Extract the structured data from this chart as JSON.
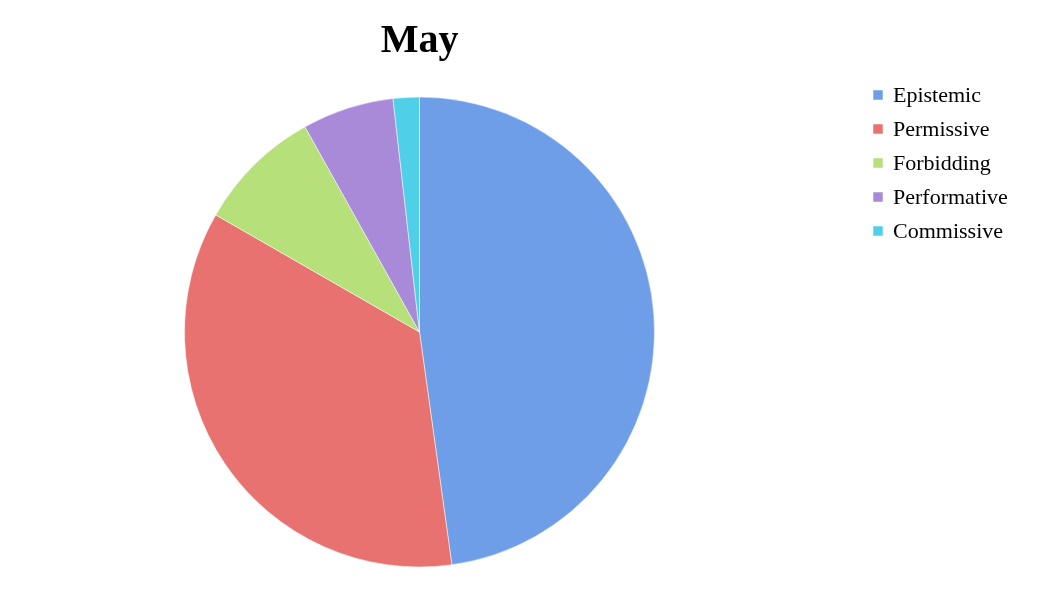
{
  "chart_data": {
    "type": "pie",
    "title": "May",
    "categories": [
      "Epistemic",
      "Permissive",
      "Forbidding",
      "Performative",
      "Commissive"
    ],
    "values": [
      47.8,
      35.5,
      8.6,
      6.3,
      1.8
    ],
    "colors": [
      "#6f9ee8",
      "#e8726f",
      "#b5e07a",
      "#a98ad8",
      "#4fd0e8"
    ],
    "legend": "right"
  }
}
